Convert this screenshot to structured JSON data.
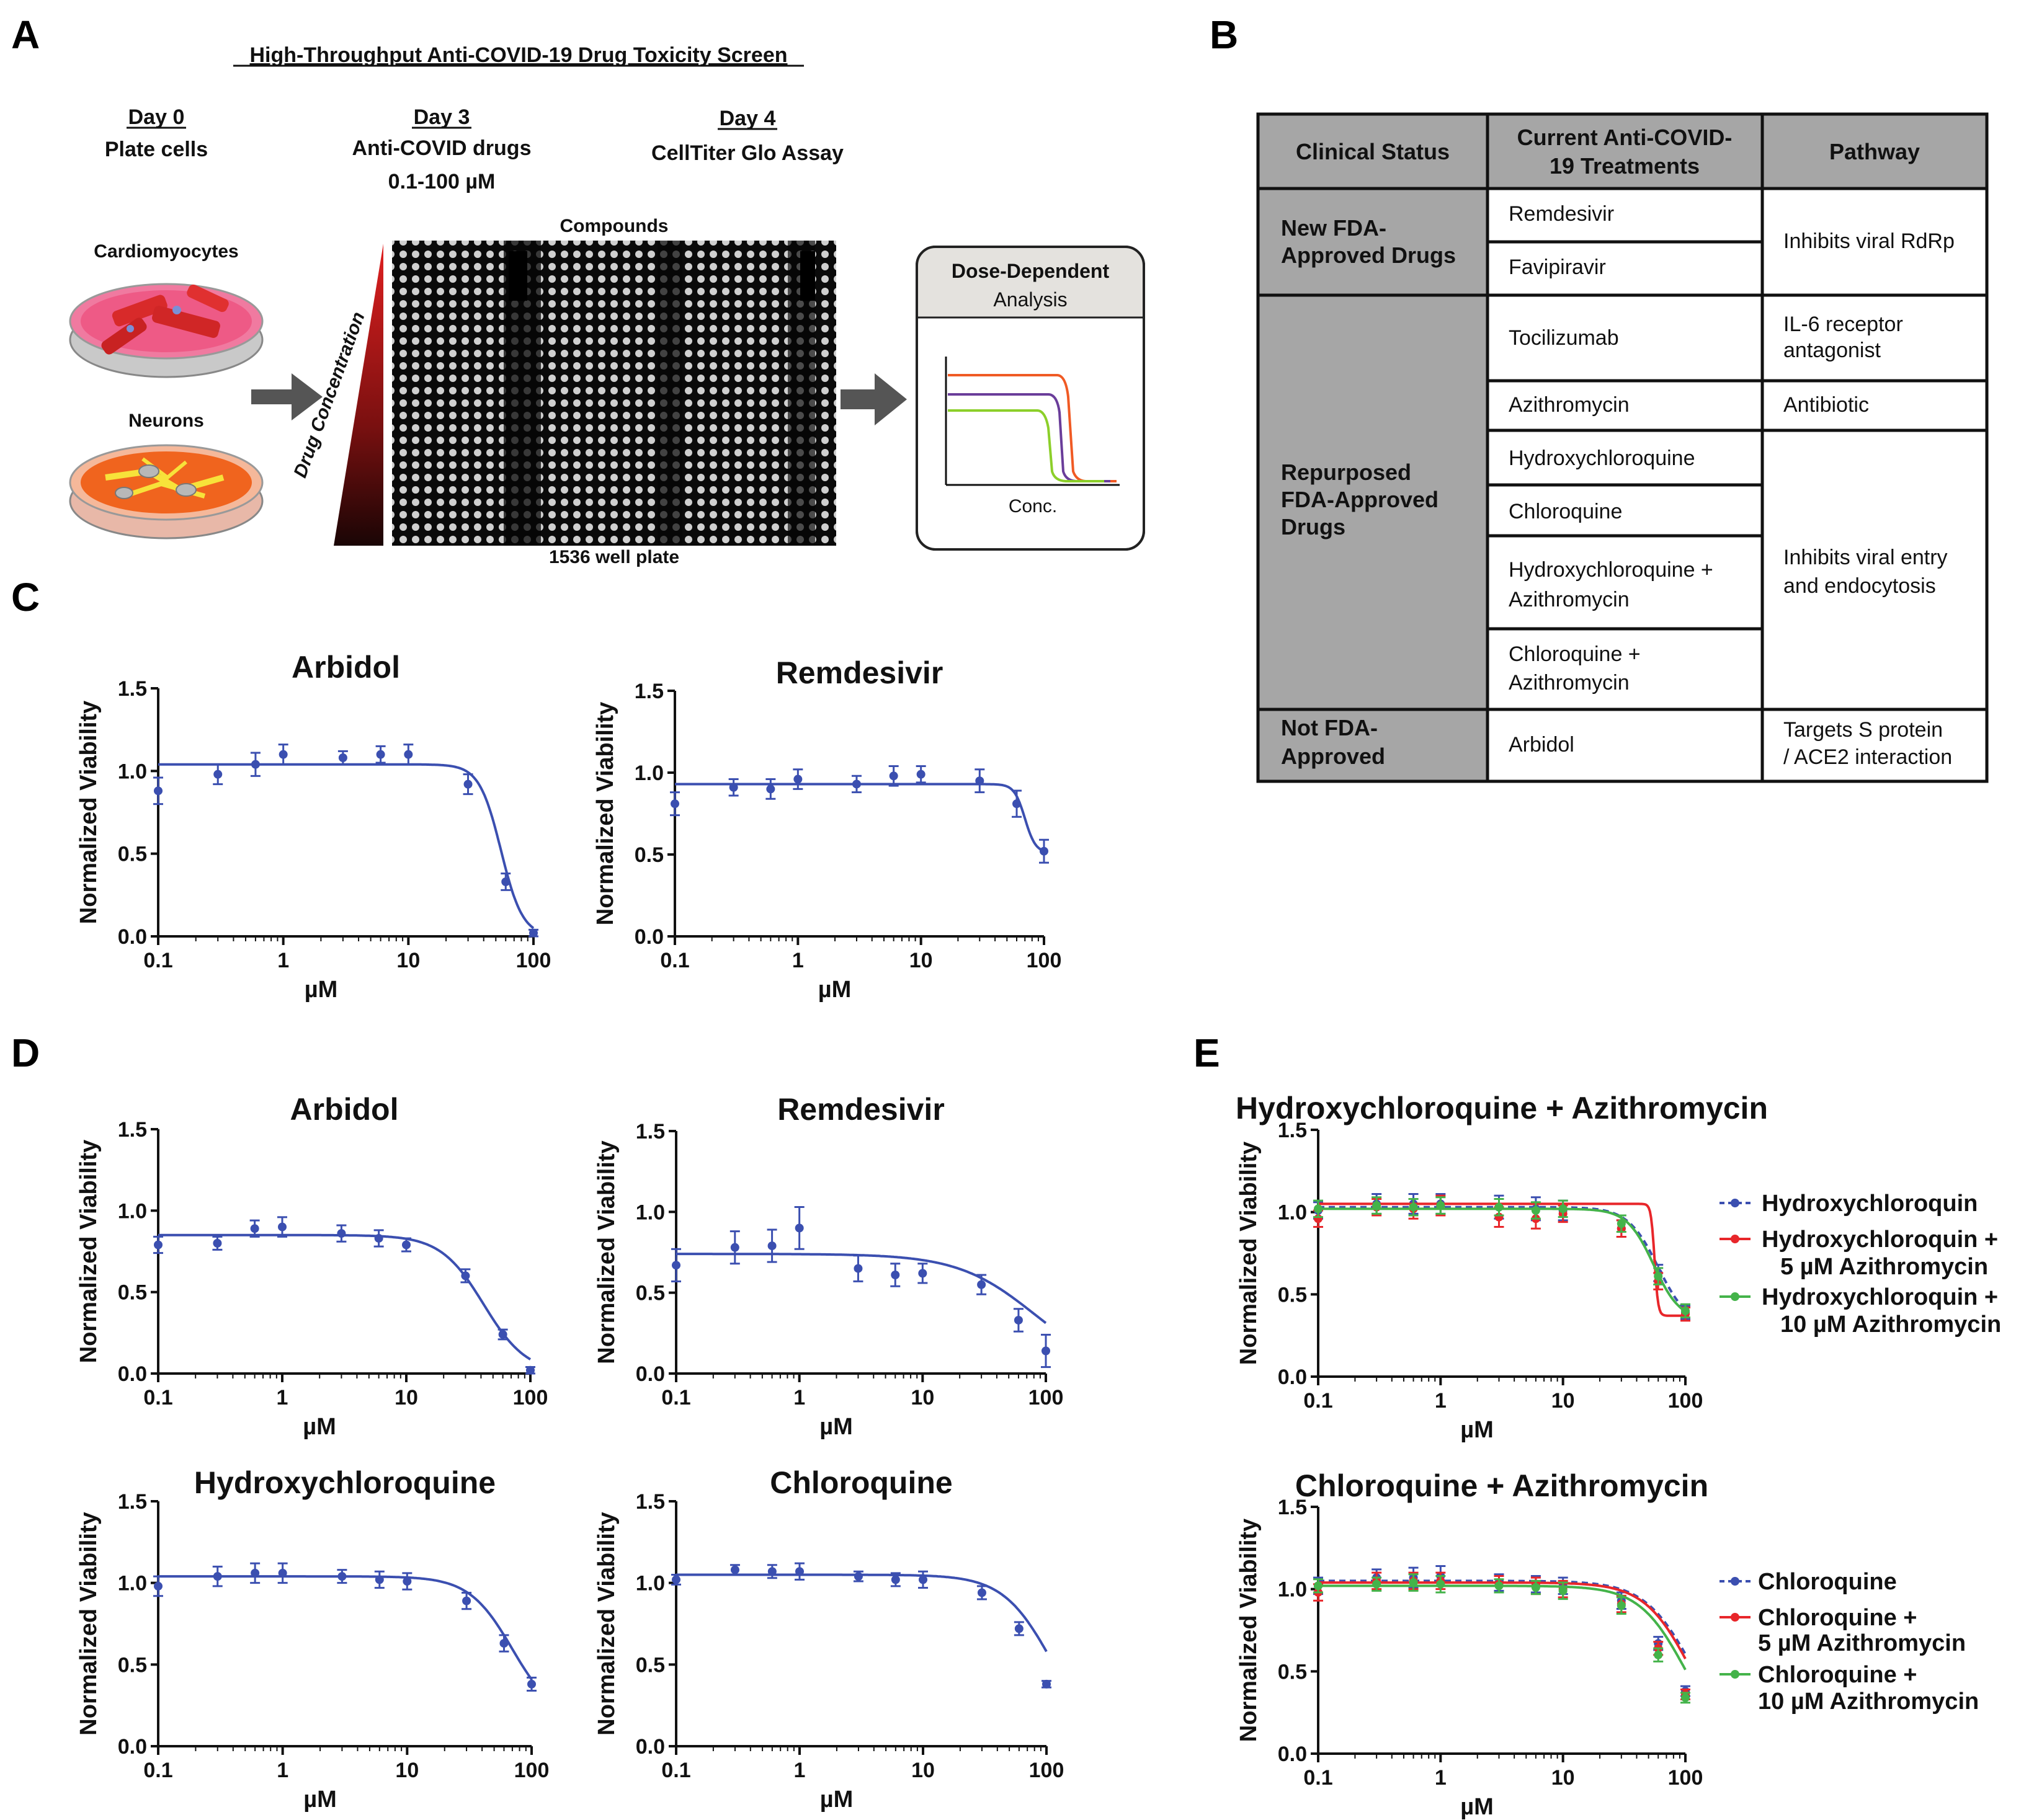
{
  "panels": {
    "a": "A",
    "b": "B",
    "c": "C",
    "d": "D",
    "e": "E"
  },
  "colors": {
    "blue": "#3b4fb0",
    "red": "#e8262a",
    "green": "#44b34a",
    "orange": "#f05a24",
    "purple": "#6a3d9a",
    "lime": "#8ccf2a",
    "tableGray": "#a6a6a6"
  },
  "panelA": {
    "title": "High-Throughput Anti-COVID-19 Drug Toxicity Screen",
    "day0": {
      "day": "Day 0",
      "line1": "Plate cells"
    },
    "day3": {
      "day": "Day 3",
      "line1": "Anti-COVID drugs",
      "line2": "0.1-100 µM"
    },
    "day4": {
      "day": "Day 4",
      "line1": "CellTiter Glo Assay"
    },
    "cardio": "Cardiomyocytes",
    "neurons": "Neurons",
    "drugConc": "Drug Concentration",
    "compounds": "Compounds",
    "plate": "1536 well plate",
    "analysis": {
      "line1": "Dose-Dependent",
      "line2": "Analysis",
      "xlabel": "Conc."
    }
  },
  "table": {
    "headers": {
      "h1": "Clinical Status",
      "h2a": "Current Anti-COVID-",
      "h2b": "19 Treatments",
      "h3": "Pathway"
    },
    "status1": {
      "l1": "New FDA-",
      "l2": "Approved Drugs"
    },
    "status2": {
      "l1": "Repurposed",
      "l2": "FDA-Approved",
      "l3": "Drugs"
    },
    "status3": {
      "l1": "Not FDA-",
      "l2": "Approved"
    },
    "drugs": {
      "remdesivir": "Remdesivir",
      "favipiravir": "Favipiravir",
      "tocilizumab": "Tocilizumab",
      "azithromycin": "Azithromycin",
      "hcq": "Hydroxychloroquine",
      "cq": "Chloroquine",
      "hcqAzi1": "Hydroxychloroquine +",
      "hcqAzi2": "Azithromycin",
      "cqAzi1": "Chloroquine +",
      "cqAzi2": "Azithromycin",
      "arbidol": "Arbidol"
    },
    "pathways": {
      "rdrp": "Inhibits viral RdRp",
      "il6a": "IL-6 receptor",
      "il6b": "antagonist",
      "antibiotic": "Antibiotic",
      "entry1": "Inhibits viral entry",
      "entry2": "and endocytosis",
      "spike1": "Targets S protein",
      "spike2": "/ ACE2 interaction"
    }
  },
  "axis": {
    "ylabel": "Normalized Viability",
    "xlabel": "µM",
    "xticks": [
      "0.1",
      "1",
      "10",
      "100"
    ],
    "yticks": [
      "0.0",
      "0.5",
      "1.0",
      "1.5"
    ]
  },
  "legendE1": {
    "s1": "Hydroxychloroquin",
    "s2a": "Hydroxychloroquin +",
    "s2b": "5 µM Azithromycin",
    "s3a": "Hydroxychloroquin +",
    "s3b": "10 µM Azithromycin"
  },
  "legendE2": {
    "s1": "Chloroquine",
    "s2a": "Chloroquine +",
    "s2b": "5 µM Azithromycin",
    "s3a": "Chloroquine +",
    "s3b": "10 µM Azithromycin"
  },
  "chart_data": [
    {
      "id": "c1",
      "panel": "C",
      "type": "scatter",
      "title": "Arbidol",
      "xlabel": "µM",
      "ylabel": "Normalized Viability",
      "xscale": "log",
      "xlim": [
        0.1,
        100
      ],
      "ylim": [
        0,
        1.5
      ],
      "series": [
        {
          "name": "Arbidol",
          "color": "#3b4fb0",
          "x": [
            0.1,
            0.3,
            0.6,
            1,
            3,
            6,
            10,
            30,
            60,
            100
          ],
          "y": [
            0.88,
            0.98,
            1.04,
            1.1,
            1.08,
            1.1,
            1.1,
            0.92,
            0.33,
            0.02
          ],
          "err": [
            0.08,
            0.06,
            0.07,
            0.06,
            0.04,
            0.05,
            0.06,
            0.06,
            0.05,
            0.02
          ],
          "fit": {
            "top": 1.04,
            "bottom": 0.0,
            "ec50": 55,
            "hill": 5
          }
        }
      ]
    },
    {
      "id": "c2",
      "panel": "C",
      "type": "scatter",
      "title": "Remdesivir",
      "xlabel": "µM",
      "ylabel": "Normalized Viability",
      "xscale": "log",
      "xlim": [
        0.1,
        100
      ],
      "ylim": [
        0,
        1.5
      ],
      "series": [
        {
          "name": "Remdesivir",
          "color": "#3b4fb0",
          "x": [
            0.1,
            0.3,
            0.6,
            1,
            3,
            6,
            10,
            30,
            60,
            100
          ],
          "y": [
            0.81,
            0.91,
            0.9,
            0.96,
            0.93,
            0.98,
            0.99,
            0.95,
            0.81,
            0.52
          ],
          "err": [
            0.07,
            0.05,
            0.06,
            0.06,
            0.05,
            0.06,
            0.05,
            0.07,
            0.08,
            0.07
          ],
          "fit": {
            "top": 0.93,
            "bottom": 0.51,
            "ec50": 70,
            "hill": 10
          }
        }
      ]
    },
    {
      "id": "d1",
      "panel": "D",
      "type": "scatter",
      "title": "Arbidol",
      "xlabel": "µM",
      "ylabel": "Normalized Viability",
      "xscale": "log",
      "xlim": [
        0.1,
        100
      ],
      "ylim": [
        0,
        1.5
      ],
      "series": [
        {
          "name": "Arbidol",
          "color": "#3b4fb0",
          "x": [
            0.1,
            0.3,
            0.6,
            1,
            3,
            6,
            10,
            30,
            60,
            100
          ],
          "y": [
            0.79,
            0.8,
            0.89,
            0.9,
            0.86,
            0.83,
            0.79,
            0.6,
            0.24,
            0.02
          ],
          "err": [
            0.05,
            0.04,
            0.05,
            0.06,
            0.05,
            0.05,
            0.04,
            0.04,
            0.03,
            0.02
          ],
          "fit": {
            "top": 0.85,
            "bottom": 0.0,
            "ec50": 42,
            "hill": 2.5
          }
        }
      ]
    },
    {
      "id": "d2",
      "panel": "D",
      "type": "scatter",
      "title": "Remdesivir",
      "xlabel": "µM",
      "ylabel": "Normalized Viability",
      "xscale": "log",
      "xlim": [
        0.1,
        100
      ],
      "ylim": [
        0,
        1.5
      ],
      "series": [
        {
          "name": "Remdesivir",
          "color": "#3b4fb0",
          "x": [
            0.1,
            0.3,
            0.6,
            1,
            3,
            6,
            10,
            30,
            60,
            100
          ],
          "y": [
            0.67,
            0.78,
            0.79,
            0.9,
            0.65,
            0.61,
            0.62,
            0.55,
            0.33,
            0.14
          ],
          "err": [
            0.1,
            0.1,
            0.1,
            0.13,
            0.08,
            0.07,
            0.06,
            0.06,
            0.07,
            0.1
          ],
          "fit": {
            "top": 0.74,
            "bottom": 0.0,
            "ec50": 80,
            "hill": 1.4
          }
        }
      ]
    },
    {
      "id": "d3",
      "panel": "D",
      "type": "scatter",
      "title": "Hydroxychloroquine",
      "xlabel": "µM",
      "ylabel": "Normalized Viability",
      "xscale": "log",
      "xlim": [
        0.1,
        100
      ],
      "ylim": [
        0,
        1.5
      ],
      "series": [
        {
          "name": "Hydroxychloroquine",
          "color": "#3b4fb0",
          "x": [
            0.1,
            0.3,
            0.6,
            1,
            3,
            6,
            10,
            30,
            60,
            100
          ],
          "y": [
            0.98,
            1.04,
            1.06,
            1.06,
            1.04,
            1.02,
            1.01,
            0.89,
            0.63,
            0.38
          ],
          "err": [
            0.06,
            0.06,
            0.06,
            0.06,
            0.04,
            0.05,
            0.05,
            0.05,
            0.05,
            0.04
          ],
          "fit": {
            "top": 1.04,
            "bottom": 0.15,
            "ec50": 70,
            "hill": 2.5
          }
        }
      ]
    },
    {
      "id": "d4",
      "panel": "D",
      "type": "scatter",
      "title": "Chloroquine",
      "xlabel": "µM",
      "ylabel": "Normalized Viability",
      "xscale": "log",
      "xlim": [
        0.1,
        100
      ],
      "ylim": [
        0,
        1.5
      ],
      "series": [
        {
          "name": "Chloroquine",
          "color": "#3b4fb0",
          "x": [
            0.1,
            0.3,
            0.6,
            1,
            3,
            6,
            10,
            30,
            60,
            100
          ],
          "y": [
            1.02,
            1.08,
            1.07,
            1.07,
            1.04,
            1.02,
            1.02,
            0.94,
            0.72,
            0.38
          ],
          "err": [
            0.03,
            0.03,
            0.04,
            0.05,
            0.03,
            0.04,
            0.05,
            0.04,
            0.04,
            0.02
          ],
          "fit": {
            "top": 1.05,
            "bottom": 0.0,
            "ec50": 110,
            "hill": 2.2
          }
        }
      ]
    },
    {
      "id": "e1",
      "panel": "E",
      "type": "scatter",
      "title": "Hydroxychloroquine + Azithromycin",
      "xlabel": "µM",
      "ylabel": "Normalized Viability",
      "xscale": "log",
      "xlim": [
        0.1,
        100
      ],
      "ylim": [
        0,
        1.5
      ],
      "series": [
        {
          "name": "Hydroxychloroquin",
          "color": "#3b4fb0",
          "dashed": true,
          "x": [
            0.1,
            0.3,
            0.6,
            1,
            3,
            6,
            10,
            30,
            60,
            100
          ],
          "y": [
            1.01,
            1.05,
            1.05,
            1.05,
            1.03,
            1.02,
            1.01,
            0.9,
            0.63,
            0.39
          ],
          "err": [
            0.05,
            0.06,
            0.06,
            0.06,
            0.07,
            0.07,
            0.06,
            0.05,
            0.05,
            0.04
          ],
          "fit": {
            "top": 1.03,
            "bottom": 0.3,
            "ec50": 60,
            "hill": 3.5
          }
        },
        {
          "name": "Hydroxychloroquin + 5 µM Azithromycin",
          "color": "#e8262a",
          "x": [
            0.1,
            0.3,
            0.6,
            1,
            3,
            6,
            10,
            30,
            60,
            100
          ],
          "y": [
            0.96,
            1.03,
            1.02,
            1.04,
            0.97,
            0.96,
            0.99,
            0.9,
            0.58,
            0.38
          ],
          "err": [
            0.05,
            0.05,
            0.06,
            0.06,
            0.06,
            0.06,
            0.05,
            0.05,
            0.05,
            0.04
          ],
          "fit": {
            "top": 1.05,
            "bottom": 0.37,
            "ec50": 56,
            "hill": 30
          }
        },
        {
          "name": "Hydroxychloroquin + 10 µM Azithromycin",
          "color": "#44b34a",
          "x": [
            0.1,
            0.3,
            0.6,
            1,
            3,
            6,
            10,
            30,
            60,
            100
          ],
          "y": [
            1.02,
            1.04,
            1.03,
            1.04,
            1.03,
            1.01,
            1.02,
            0.93,
            0.61,
            0.4
          ],
          "err": [
            0.05,
            0.05,
            0.05,
            0.05,
            0.05,
            0.05,
            0.05,
            0.05,
            0.05,
            0.04
          ],
          "fit": {
            "top": 1.02,
            "bottom": 0.34,
            "ec50": 55,
            "hill": 4
          }
        }
      ]
    },
    {
      "id": "e2",
      "panel": "E",
      "type": "scatter",
      "title": "Chloroquine + Azithromycin",
      "xlabel": "µM",
      "ylabel": "Normalized Viability",
      "xscale": "log",
      "xlim": [
        0.1,
        100
      ],
      "ylim": [
        0,
        1.5
      ],
      "series": [
        {
          "name": "Chloroquine",
          "color": "#3b4fb0",
          "dashed": true,
          "x": [
            0.1,
            0.3,
            0.6,
            1,
            3,
            6,
            10,
            30,
            60,
            100
          ],
          "y": [
            1.02,
            1.07,
            1.07,
            1.08,
            1.04,
            1.03,
            1.02,
            0.93,
            0.67,
            0.38
          ],
          "err": [
            0.05,
            0.05,
            0.06,
            0.06,
            0.05,
            0.05,
            0.05,
            0.05,
            0.04,
            0.03
          ],
          "fit": {
            "top": 1.05,
            "bottom": 0.0,
            "ec50": 115,
            "hill": 2.2
          }
        },
        {
          "name": "Chloroquine + 5 µM Azithromycin",
          "color": "#e8262a",
          "x": [
            0.1,
            0.3,
            0.6,
            1,
            3,
            6,
            10,
            30,
            60,
            100
          ],
          "y": [
            0.98,
            1.05,
            1.05,
            1.05,
            1.03,
            1.02,
            1.0,
            0.91,
            0.64,
            0.36
          ],
          "err": [
            0.05,
            0.05,
            0.05,
            0.05,
            0.05,
            0.05,
            0.05,
            0.05,
            0.04,
            0.03
          ],
          "fit": {
            "top": 1.04,
            "bottom": 0.0,
            "ec50": 110,
            "hill": 2.3
          }
        },
        {
          "name": "Chloroquine + 10 µM Azithromycin",
          "color": "#44b34a",
          "x": [
            0.1,
            0.3,
            0.6,
            1,
            3,
            6,
            10,
            30,
            60,
            100
          ],
          "y": [
            1.02,
            1.03,
            1.04,
            1.03,
            1.02,
            1.01,
            0.99,
            0.9,
            0.6,
            0.34
          ],
          "err": [
            0.04,
            0.04,
            0.05,
            0.05,
            0.04,
            0.04,
            0.05,
            0.05,
            0.04,
            0.03
          ],
          "fit": {
            "top": 1.02,
            "bottom": 0.0,
            "ec50": 100,
            "hill": 2.3
          }
        }
      ]
    }
  ]
}
